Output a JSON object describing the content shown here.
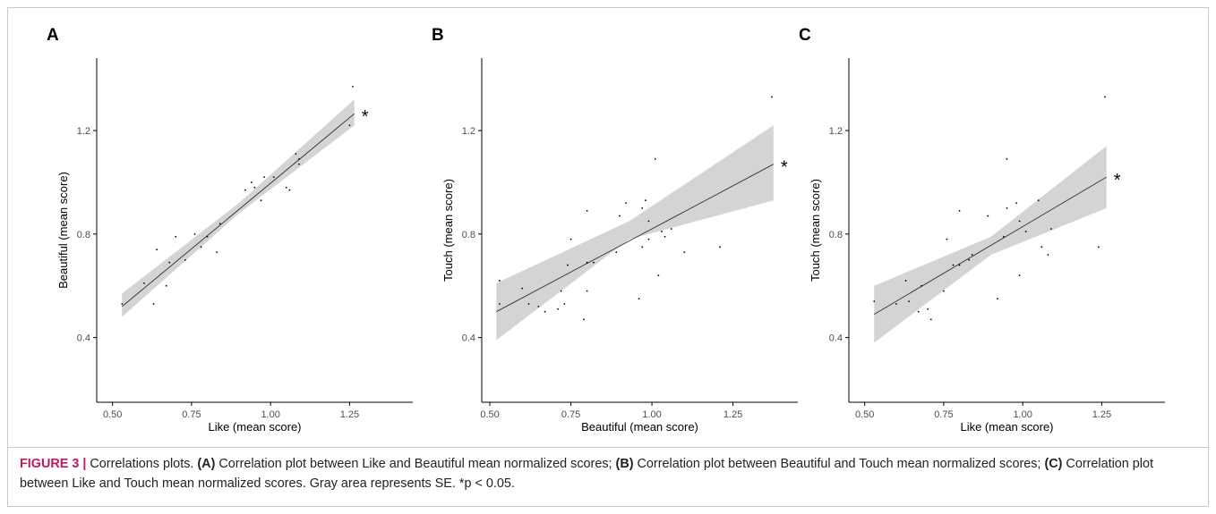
{
  "figure": {
    "caption_label": "FIGURE 3 |",
    "caption_title": "Correlations plots.",
    "caption_parts": [
      {
        "ref": "(A)",
        "text": "Correlation plot between Like and Beautiful mean normalized scores;"
      },
      {
        "ref": "(B)",
        "text": "Correlation plot between Beautiful and Touch mean normalized scores;"
      },
      {
        "ref": "(C)",
        "text": "Correlation plot between Like and Touch mean normalized scores. Gray area represents SE. *p < 0.05."
      }
    ]
  },
  "colors": {
    "band": "#d4d4d4",
    "line": "#333333",
    "points": "#000000",
    "axis": "#000000",
    "caption_label": "#c2185b"
  },
  "chart_data": [
    {
      "panel": "A",
      "type": "scatter",
      "trendline": "linear",
      "confidence_band": "SE",
      "annotation": "*",
      "xlabel": "Like (mean score)",
      "ylabel": "Beautiful (mean score)",
      "xlim": [
        0.45,
        1.45
      ],
      "ylim": [
        0.15,
        1.48
      ],
      "xticks": [
        0.5,
        0.75,
        1.0,
        1.25
      ],
      "xtick_labels": [
        "0.50",
        "0.75",
        "1.00",
        "1.25"
      ],
      "yticks": [
        0.4,
        0.8,
        1.2
      ],
      "ytick_labels": [
        "0.4",
        "0.8",
        "1.2"
      ],
      "fit": {
        "x": [
          0.53,
          1.265
        ],
        "y": [
          0.52,
          1.265
        ]
      },
      "band": {
        "x": [
          0.53,
          0.9,
          1.265
        ],
        "lower": [
          0.48,
          0.88,
          1.22
        ],
        "upper": [
          0.57,
          0.92,
          1.32
        ]
      },
      "points": [
        [
          0.53,
          0.53
        ],
        [
          0.6,
          0.61
        ],
        [
          0.63,
          0.53
        ],
        [
          0.64,
          0.74
        ],
        [
          0.67,
          0.6
        ],
        [
          0.68,
          0.69
        ],
        [
          0.7,
          0.79
        ],
        [
          0.73,
          0.7
        ],
        [
          0.76,
          0.8
        ],
        [
          0.78,
          0.75
        ],
        [
          0.8,
          0.79
        ],
        [
          0.83,
          0.73
        ],
        [
          0.84,
          0.84
        ],
        [
          0.92,
          0.97
        ],
        [
          0.94,
          1.0
        ],
        [
          0.95,
          0.98
        ],
        [
          0.97,
          0.93
        ],
        [
          0.98,
          1.02
        ],
        [
          1.01,
          1.02
        ],
        [
          1.05,
          0.98
        ],
        [
          1.06,
          0.97
        ],
        [
          1.08,
          1.11
        ],
        [
          1.09,
          1.09
        ],
        [
          1.09,
          1.07
        ],
        [
          1.26,
          1.37
        ],
        [
          1.25,
          1.22
        ]
      ]
    },
    {
      "panel": "B",
      "type": "scatter",
      "trendline": "linear",
      "confidence_band": "SE",
      "annotation": "*",
      "xlabel": "Beautiful (mean score)",
      "ylabel": "Touch (mean score)",
      "xlim": [
        0.475,
        1.45
      ],
      "ylim": [
        0.15,
        1.48
      ],
      "xticks": [
        0.5,
        0.75,
        1.0,
        1.25
      ],
      "xtick_labels": [
        "0.50",
        "0.75",
        "1.00",
        "1.25"
      ],
      "yticks": [
        0.4,
        0.8,
        1.2
      ],
      "ytick_labels": [
        "0.4",
        "0.8",
        "1.2"
      ],
      "fit": {
        "x": [
          0.52,
          1.375
        ],
        "y": [
          0.5,
          1.07
        ]
      },
      "band": {
        "x": [
          0.52,
          0.93,
          1.375
        ],
        "lower": [
          0.39,
          0.78,
          0.93
        ],
        "upper": [
          0.61,
          0.85,
          1.22
        ]
      },
      "points": [
        [
          0.53,
          0.62
        ],
        [
          0.53,
          0.53
        ],
        [
          0.6,
          0.59
        ],
        [
          0.62,
          0.53
        ],
        [
          0.65,
          0.52
        ],
        [
          0.67,
          0.5
        ],
        [
          0.71,
          0.51
        ],
        [
          0.72,
          0.58
        ],
        [
          0.73,
          0.53
        ],
        [
          0.74,
          0.68
        ],
        [
          0.75,
          0.78
        ],
        [
          0.79,
          0.47
        ],
        [
          0.8,
          0.58
        ],
        [
          0.8,
          0.69
        ],
        [
          0.8,
          0.89
        ],
        [
          0.82,
          0.69
        ],
        [
          0.89,
          0.73
        ],
        [
          0.9,
          0.87
        ],
        [
          0.92,
          0.92
        ],
        [
          0.96,
          0.55
        ],
        [
          0.97,
          0.9
        ],
        [
          0.97,
          0.75
        ],
        [
          0.98,
          0.93
        ],
        [
          0.99,
          0.85
        ],
        [
          0.99,
          0.78
        ],
        [
          1.01,
          1.09
        ],
        [
          1.02,
          0.64
        ],
        [
          1.03,
          0.81
        ],
        [
          1.04,
          0.79
        ],
        [
          1.06,
          0.82
        ],
        [
          1.1,
          0.73
        ],
        [
          1.21,
          0.75
        ],
        [
          1.37,
          1.33
        ]
      ]
    },
    {
      "panel": "C",
      "type": "scatter",
      "trendline": "linear",
      "confidence_band": "SE",
      "annotation": "*",
      "xlabel": "Like (mean score)",
      "ylabel": "Touch (mean score)",
      "xlim": [
        0.45,
        1.45
      ],
      "ylim": [
        0.15,
        1.48
      ],
      "xticks": [
        0.5,
        0.75,
        1.0,
        1.25
      ],
      "xtick_labels": [
        "0.50",
        "0.75",
        "1.00",
        "1.25"
      ],
      "yticks": [
        0.4,
        0.8,
        1.2
      ],
      "ytick_labels": [
        "0.4",
        "0.8",
        "1.2"
      ],
      "fit": {
        "x": [
          0.53,
          1.265
        ],
        "y": [
          0.49,
          1.02
        ]
      },
      "band": {
        "x": [
          0.53,
          0.9,
          1.265
        ],
        "lower": [
          0.38,
          0.72,
          0.9
        ],
        "upper": [
          0.6,
          0.79,
          1.14
        ]
      },
      "points": [
        [
          0.53,
          0.54
        ],
        [
          0.6,
          0.53
        ],
        [
          0.63,
          0.62
        ],
        [
          0.64,
          0.54
        ],
        [
          0.67,
          0.5
        ],
        [
          0.68,
          0.6
        ],
        [
          0.7,
          0.51
        ],
        [
          0.71,
          0.47
        ],
        [
          0.75,
          0.58
        ],
        [
          0.76,
          0.78
        ],
        [
          0.78,
          0.68
        ],
        [
          0.8,
          0.68
        ],
        [
          0.8,
          0.89
        ],
        [
          0.83,
          0.7
        ],
        [
          0.84,
          0.72
        ],
        [
          0.89,
          0.87
        ],
        [
          0.92,
          0.55
        ],
        [
          0.94,
          0.79
        ],
        [
          0.95,
          1.09
        ],
        [
          0.95,
          0.9
        ],
        [
          0.98,
          0.92
        ],
        [
          0.99,
          0.64
        ],
        [
          0.99,
          0.85
        ],
        [
          1.01,
          0.81
        ],
        [
          1.05,
          0.93
        ],
        [
          1.06,
          0.75
        ],
        [
          1.08,
          0.72
        ],
        [
          1.09,
          0.82
        ],
        [
          1.24,
          0.75
        ],
        [
          1.26,
          1.33
        ]
      ]
    }
  ]
}
